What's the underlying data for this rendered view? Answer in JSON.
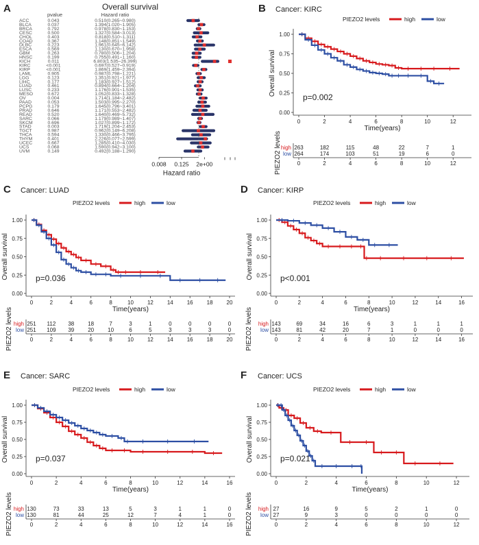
{
  "colors": {
    "high": "#d7191c",
    "low": "#2c4ea3",
    "forest_dot": "#e0302f",
    "forest_bar": "#2a3468"
  },
  "legend_title": "PIEZO2 levels",
  "risk_label": "PIEZO2 levels",
  "x_title": "Time(years)",
  "y_title": "Overall survival",
  "chart_data": [
    {
      "panel": "A",
      "type": "forest",
      "title": "Overall survival",
      "columns": [
        "pvalue",
        "Hazard ratio"
      ],
      "xlabel": "Hazard ratio",
      "x_ticks": [
        "0.008",
        "0.125",
        "2e+00"
      ],
      "rows": [
        {
          "cancer": "ACC",
          "p": "0.043",
          "hr": "0.510(0.265~0.980)",
          "v": 0.51
        },
        {
          "cancer": "BLCA",
          "p": "0.037",
          "hr": "1.394(1.020~1.905)",
          "v": 1.394
        },
        {
          "cancer": "BRCA",
          "p": "0.792",
          "hr": "0.978(0.830~1.153)",
          "v": 0.978
        },
        {
          "cancer": "CESC",
          "p": "0.500",
          "hr": "1.327(0.584~3.013)",
          "v": 1.327
        },
        {
          "cancer": "CHOL",
          "p": "0.403",
          "hr": "0.818(0.510~1.311)",
          "v": 0.818
        },
        {
          "cancer": "COAD",
          "p": "0.367",
          "hr": "1.148(0.851~1.549)",
          "v": 1.148
        },
        {
          "cancer": "DLBC",
          "p": "0.223",
          "hr": "1.961(0.645~6.142)",
          "v": 1.961
        },
        {
          "cancer": "ESCA",
          "p": "0.569",
          "hr": "1.130(0.670~1.958)",
          "v": 1.13
        },
        {
          "cancer": "GBM",
          "p": "0.263",
          "hr": "0.780(0.506~1.204)",
          "v": 0.78
        },
        {
          "cancer": "HNSC",
          "p": "0.199",
          "hr": "0.755(0.491~1.160)",
          "v": 0.755
        },
        {
          "cancer": "KICH",
          "p": "0.011",
          "hr": "6.803(1.535~26.399)",
          "v": 6.803
        },
        {
          "cancer": "KIRC",
          "p": "<0.001",
          "hr": "0.697(0.527~0.919)",
          "v": 0.697
        },
        {
          "cancer": "KIRP",
          "p": "<0.001",
          "hr": "1.869(1.459~2.394)",
          "v": 1.869
        },
        {
          "cancer": "LAML",
          "p": "0.905",
          "hr": "0.987(0.798~1.221)",
          "v": 0.987
        },
        {
          "cancer": "LGG",
          "p": "0.123",
          "hr": "1.351(0.921~1.977)",
          "v": 1.351
        },
        {
          "cancer": "LIHC",
          "p": "0.177",
          "hr": "1.183(0.927~1.512)",
          "v": 1.183
        },
        {
          "cancer": "LUAD",
          "p": "0.461",
          "hr": "0.894(0.664~1.204)",
          "v": 0.894
        },
        {
          "cancer": "LUSC",
          "p": "0.233",
          "hr": "1.176(0.901~1.535)",
          "v": 1.176
        },
        {
          "cancer": "MESO",
          "p": "0.672",
          "hr": "1.052(0.833~1.328)",
          "v": 1.052
        },
        {
          "cancer": "OV",
          "p": "0.004",
          "hr": "1.714(1.184~2.482)",
          "v": 1.714
        },
        {
          "cancer": "PAAD",
          "p": "0.053",
          "hr": "1.503(0.995~2.270)",
          "v": 1.503
        },
        {
          "cancer": "PCPG",
          "p": "0.179",
          "hr": "1.645(0.796~3.401)",
          "v": 1.645
        },
        {
          "cancer": "PRAD",
          "p": "0.646",
          "hr": "1.171(0.553~2.482)",
          "v": 1.171
        },
        {
          "cancer": "READ",
          "p": "0.520",
          "hr": "1.640(0.469~5.732)",
          "v": 1.64
        },
        {
          "cancer": "SARC",
          "p": "0.066",
          "hr": "1.179(0.989~1.407)",
          "v": 1.179
        },
        {
          "cancer": "SKCM",
          "p": "0.696",
          "hr": "1.027(0.899~1.172)",
          "v": 1.027
        },
        {
          "cancer": "STAD",
          "p": "0.003",
          "hr": "1.719(1.204~2.453)",
          "v": 1.719
        },
        {
          "cancer": "TGCT",
          "p": "0.987",
          "hr": "0.962(0.149~6.208)",
          "v": 0.962
        },
        {
          "cancer": "THCA",
          "p": "0.594",
          "hr": "1.330(0.466~3.795)",
          "v": 1.33
        },
        {
          "cancer": "THYM",
          "p": "0.401",
          "hr": "2.226(0.077~2.599)",
          "v": 2.226
        },
        {
          "cancer": "UCEC",
          "p": "0.667",
          "hr": "1.285(0.410~4.030)",
          "v": 1.285
        },
        {
          "cancer": "UCS",
          "p": "0.068",
          "hr": "1.590(0.942~3.100)",
          "v": 1.59
        },
        {
          "cancer": "UVM",
          "p": "0.149",
          "hr": "0.492(0.188~1.290)",
          "v": 0.492
        }
      ]
    },
    {
      "panel": "B",
      "type": "survival",
      "title": "Cancer: KIRC",
      "pvalue": "p=0.002",
      "xlim": [
        0,
        13
      ],
      "x_ticks": [
        0,
        2,
        4,
        6,
        8,
        10,
        12
      ],
      "y_ticks": [
        "0.00",
        "0.25",
        "0.50",
        "0.75",
        "1.00"
      ],
      "risk_times": [
        0,
        2,
        4,
        6,
        8,
        10,
        12
      ],
      "risk": {
        "high": [
          "263",
          "182",
          "115",
          "48",
          "22",
          "7",
          "1"
        ],
        "low": [
          "264",
          "174",
          "103",
          "51",
          "19",
          "6",
          "0"
        ]
      },
      "series": [
        {
          "name": "high",
          "x": [
            0,
            0.5,
            1,
            1.5,
            2,
            2.5,
            3,
            3.5,
            4,
            4.5,
            5,
            5.5,
            6,
            6.5,
            7,
            7.5,
            8,
            9,
            10,
            11,
            12.5
          ],
          "y": [
            1,
            0.95,
            0.91,
            0.87,
            0.84,
            0.81,
            0.78,
            0.75,
            0.72,
            0.69,
            0.66,
            0.64,
            0.62,
            0.61,
            0.6,
            0.57,
            0.56,
            0.56,
            0.56,
            0.56,
            0.56
          ]
        },
        {
          "name": "low",
          "x": [
            0,
            0.5,
            1,
            1.5,
            2,
            2.5,
            3,
            3.5,
            4,
            4.5,
            5,
            5.5,
            6,
            6.5,
            7,
            7.5,
            8,
            9,
            10,
            10.5,
            11.3
          ],
          "y": [
            1,
            0.93,
            0.86,
            0.8,
            0.75,
            0.7,
            0.66,
            0.61,
            0.58,
            0.55,
            0.53,
            0.51,
            0.5,
            0.49,
            0.47,
            0.47,
            0.47,
            0.47,
            0.4,
            0.37,
            0.37
          ]
        }
      ]
    },
    {
      "panel": "C",
      "type": "survival",
      "title": "Cancer: LUAD",
      "pvalue": "p=0.036",
      "xlim": [
        0,
        20
      ],
      "x_ticks": [
        0,
        2,
        4,
        6,
        8,
        10,
        12,
        14,
        16,
        18,
        20
      ],
      "y_ticks": [
        "0.00",
        "0.25",
        "0.50",
        "0.75",
        "1.00"
      ],
      "risk_times": [
        0,
        2,
        4,
        6,
        8,
        10,
        12,
        14,
        16,
        18,
        20
      ],
      "risk": {
        "high": [
          "251",
          "112",
          "38",
          "18",
          "7",
          "3",
          "1",
          "0",
          "0",
          "0",
          "0"
        ],
        "low": [
          "251",
          "109",
          "39",
          "20",
          "10",
          "6",
          "5",
          "3",
          "3",
          "3",
          "0"
        ]
      },
      "series": [
        {
          "name": "high",
          "x": [
            0,
            0.5,
            1,
            1.5,
            2,
            2.5,
            3,
            3.5,
            4,
            4.5,
            5,
            6,
            7,
            8,
            8.5,
            9,
            10,
            12,
            13.5
          ],
          "y": [
            1,
            0.94,
            0.86,
            0.8,
            0.74,
            0.68,
            0.62,
            0.57,
            0.53,
            0.49,
            0.45,
            0.4,
            0.37,
            0.32,
            0.29,
            0.29,
            0.29,
            0.29,
            0.29
          ]
        },
        {
          "name": "low",
          "x": [
            0,
            0.5,
            1,
            1.5,
            2,
            2.5,
            3,
            3.5,
            4,
            4.5,
            5,
            6,
            7,
            8,
            10,
            12,
            14,
            16,
            18,
            19.6
          ],
          "y": [
            1,
            0.93,
            0.84,
            0.75,
            0.66,
            0.56,
            0.46,
            0.4,
            0.35,
            0.31,
            0.29,
            0.26,
            0.26,
            0.24,
            0.24,
            0.24,
            0.18,
            0.18,
            0.18,
            0.18
          ]
        }
      ]
    },
    {
      "panel": "D",
      "type": "survival",
      "title": "Cancer: KIRP",
      "pvalue": "p<0.001",
      "xlim": [
        0,
        16.5
      ],
      "x_ticks": [
        0,
        2,
        4,
        6,
        8,
        10,
        12,
        14,
        16
      ],
      "y_ticks": [
        "0.00",
        "0.25",
        "0.50",
        "0.75",
        "1.00"
      ],
      "risk_times": [
        0,
        2,
        4,
        6,
        8,
        10,
        12,
        14,
        16
      ],
      "risk": {
        "high": [
          "143",
          "69",
          "34",
          "16",
          "6",
          "3",
          "1",
          "1",
          "1"
        ],
        "low": [
          "143",
          "81",
          "42",
          "20",
          "7",
          "1",
          "0",
          "0",
          "0"
        ]
      },
      "series": [
        {
          "name": "high",
          "x": [
            0,
            0.5,
            1,
            1.5,
            2,
            2.5,
            3,
            3.5,
            4,
            5,
            6,
            7,
            7.6,
            8,
            10,
            12,
            14,
            16.2
          ],
          "y": [
            1,
            0.97,
            0.92,
            0.87,
            0.82,
            0.76,
            0.72,
            0.68,
            0.64,
            0.64,
            0.64,
            0.64,
            0.48,
            0.48,
            0.48,
            0.48,
            0.48,
            0.48
          ]
        },
        {
          "name": "low",
          "x": [
            0,
            1,
            2,
            3,
            4,
            5,
            6,
            7,
            8,
            9,
            10.5
          ],
          "y": [
            1,
            0.99,
            0.96,
            0.93,
            0.89,
            0.84,
            0.77,
            0.73,
            0.66,
            0.66,
            0.66
          ]
        }
      ]
    },
    {
      "panel": "E",
      "type": "survival",
      "title": "Cancer: SARC",
      "pvalue": "p=0.037",
      "xlim": [
        0,
        16
      ],
      "x_ticks": [
        0,
        2,
        4,
        6,
        8,
        10,
        12,
        14,
        16
      ],
      "y_ticks": [
        "0.00",
        "0.25",
        "0.50",
        "0.75",
        "1.00"
      ],
      "risk_times": [
        0,
        2,
        4,
        6,
        8,
        10,
        12,
        14,
        16
      ],
      "risk": {
        "high": [
          "130",
          "73",
          "33",
          "13",
          "5",
          "3",
          "1",
          "1",
          "0"
        ],
        "low": [
          "130",
          "81",
          "44",
          "25",
          "12",
          "7",
          "4",
          "1",
          "0"
        ]
      },
      "series": [
        {
          "name": "high",
          "x": [
            0,
            0.5,
            1,
            1.5,
            2,
            2.5,
            3,
            3.5,
            4,
            4.5,
            5,
            5.5,
            6,
            7,
            8,
            10,
            12,
            14,
            15.4
          ],
          "y": [
            1,
            0.95,
            0.89,
            0.82,
            0.75,
            0.69,
            0.62,
            0.57,
            0.52,
            0.46,
            0.41,
            0.37,
            0.34,
            0.34,
            0.32,
            0.32,
            0.32,
            0.3,
            0.3
          ]
        },
        {
          "name": "low",
          "x": [
            0,
            0.5,
            1,
            1.5,
            2,
            2.5,
            3,
            3.5,
            4,
            4.5,
            5,
            5.5,
            6,
            7,
            7.5,
            8,
            10,
            12,
            14.3
          ],
          "y": [
            1,
            0.96,
            0.91,
            0.86,
            0.82,
            0.78,
            0.74,
            0.7,
            0.66,
            0.63,
            0.6,
            0.57,
            0.55,
            0.52,
            0.47,
            0.47,
            0.47,
            0.47,
            0.47
          ]
        }
      ]
    },
    {
      "panel": "F",
      "type": "survival",
      "title": "Cancer: UCS",
      "pvalue": "p=0.021",
      "xlim": [
        0,
        12.5
      ],
      "x_ticks": [
        0,
        2,
        4,
        6,
        8,
        10,
        12
      ],
      "y_ticks": [
        "0.00",
        "0.25",
        "0.50",
        "0.75",
        "1.00"
      ],
      "risk_times": [
        0,
        2,
        4,
        6,
        8,
        10,
        12
      ],
      "risk": {
        "high": [
          "27",
          "16",
          "9",
          "5",
          "2",
          "1",
          "0"
        ],
        "low": [
          "27",
          "9",
          "3",
          "0",
          "0",
          "0",
          "0"
        ]
      },
      "series": [
        {
          "name": "high",
          "x": [
            0,
            0.2,
            0.5,
            0.8,
            1.2,
            1.6,
            2,
            2.5,
            3,
            4.3,
            5.5,
            6.5,
            7.5,
            8.5,
            10,
            11.8
          ],
          "y": [
            1,
            0.96,
            0.93,
            0.85,
            0.81,
            0.74,
            0.67,
            0.62,
            0.6,
            0.46,
            0.46,
            0.31,
            0.31,
            0.15,
            0.15,
            0.15
          ]
        },
        {
          "name": "low",
          "x": [
            0,
            0.25,
            0.4,
            0.6,
            0.8,
            1.0,
            1.2,
            1.4,
            1.6,
            1.8,
            2.0,
            2.2,
            2.4,
            2.6,
            3.5,
            4.5,
            5.6,
            5.7
          ],
          "y": [
            1,
            1,
            0.93,
            0.85,
            0.78,
            0.7,
            0.63,
            0.56,
            0.48,
            0.41,
            0.33,
            0.26,
            0.19,
            0.11,
            0.11,
            0.11,
            0.11,
            0
          ]
        }
      ]
    }
  ]
}
